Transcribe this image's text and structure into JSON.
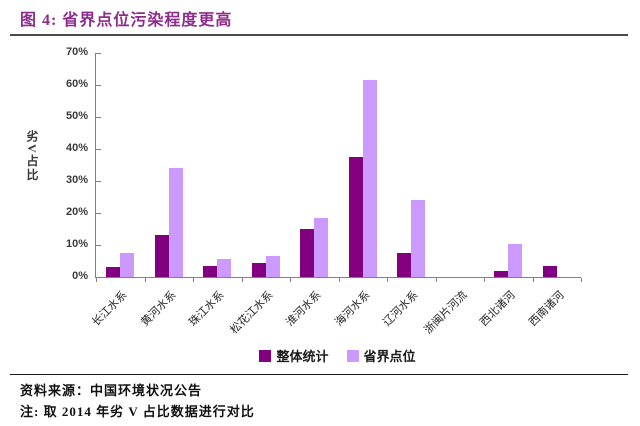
{
  "header": {
    "title": "图 4:  省界点位污染程度更高"
  },
  "colors": {
    "title_accent": "#8C2D8C",
    "series_dark": "#800080",
    "series_light": "#CC99FF",
    "axis": "#808080"
  },
  "chart_data": {
    "type": "bar",
    "title": "省界点位污染程度更高",
    "categories": [
      "长江水系",
      "黄河水系",
      "珠江水系",
      "松花江水系",
      "淮河水系",
      "海河水系",
      "辽河水系",
      "浙闽片河流",
      "西北诸河",
      "西南诸河"
    ],
    "series": [
      {
        "name": "整体统计",
        "color": "#800080",
        "values": [
          3,
          13,
          3.5,
          4.5,
          15,
          37.5,
          7.5,
          0,
          2,
          3.3
        ]
      },
      {
        "name": "省界点位",
        "color": "#CC99FF",
        "values": [
          7.5,
          34,
          5.5,
          6.5,
          18.5,
          61.5,
          24,
          0,
          10.3,
          0
        ]
      }
    ],
    "xlabel": "",
    "ylabel": "劣V占比",
    "ylim": [
      0,
      70
    ],
    "ytick_step": 10,
    "ytick_suffix": "%",
    "grid": false,
    "legend_position": "bottom"
  },
  "footer": {
    "source": "资料来源：中国环境状况公告",
    "note": "注: 取 2014 年劣 V 占比数据进行对比"
  }
}
